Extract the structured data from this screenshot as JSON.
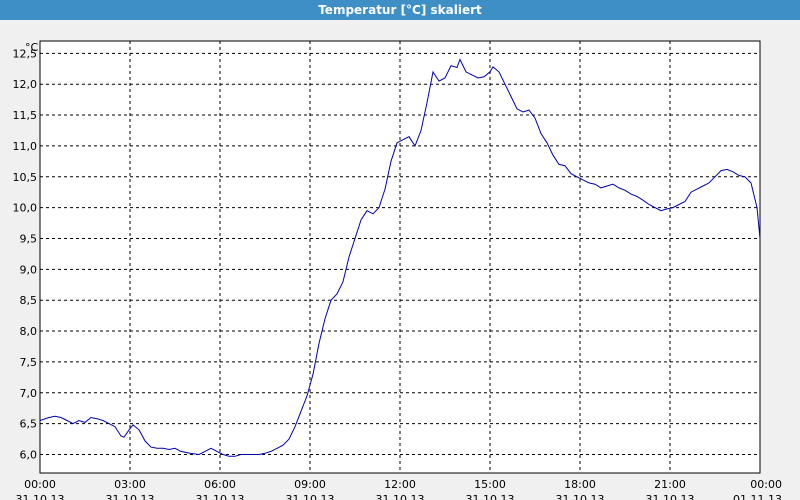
{
  "window": {
    "title": "Temperatur [°C] skaliert"
  },
  "chart_data": {
    "type": "line",
    "title": "Temperatur [°C] skaliert",
    "y_unit": "°C",
    "ylim": [
      5.7,
      12.7
    ],
    "yticks": [
      "12,5",
      "12,0",
      "11,5",
      "11,0",
      "10,5",
      "10,0",
      "9,5",
      "9,0",
      "8,5",
      "8,0",
      "7,5",
      "7,0",
      "6,5",
      "6,0"
    ],
    "ytick_values": [
      12.5,
      12.0,
      11.5,
      11.0,
      10.5,
      10.0,
      9.5,
      9.0,
      8.5,
      8.0,
      7.5,
      7.0,
      6.5,
      6.0
    ],
    "xlim": [
      0,
      24
    ],
    "xticks": [
      {
        "time": "00:00",
        "date": "31.10.13"
      },
      {
        "time": "03:00",
        "date": "31.10.13"
      },
      {
        "time": "06:00",
        "date": "31.10.13"
      },
      {
        "time": "09:00",
        "date": "31.10.13"
      },
      {
        "time": "12:00",
        "date": "31.10.13"
      },
      {
        "time": "15:00",
        "date": "31.10.13"
      },
      {
        "time": "18:00",
        "date": "31.10.13"
      },
      {
        "time": "21:00",
        "date": "31.10.13"
      },
      {
        "time": "00:00",
        "date": "01.11.13"
      }
    ],
    "grid": true,
    "line_color": "#0000aa",
    "series": [
      {
        "x": [
          0,
          0.3,
          0.5,
          0.7,
          0.9,
          1.1,
          1.3,
          1.5,
          1.7,
          1.9,
          2.1,
          2.3,
          2.5,
          2.7,
          2.8,
          3.0,
          3.1,
          3.3,
          3.5,
          3.7,
          3.9,
          4.1,
          4.3,
          4.5,
          4.7,
          5.0,
          5.3,
          5.5,
          5.7,
          5.9,
          6.1,
          6.3,
          6.5,
          6.7,
          6.9,
          7.1,
          7.3,
          7.5,
          7.7,
          7.9,
          8.1,
          8.3,
          8.5,
          8.7,
          8.9,
          9.1,
          9.3,
          9.5,
          9.7,
          9.9,
          10.1,
          10.3,
          10.5,
          10.7,
          10.9,
          11.1,
          11.3,
          11.5,
          11.7,
          11.9,
          12.1,
          12.3,
          12.5,
          12.7,
          12.9,
          13.1,
          13.3,
          13.5,
          13.7,
          13.9,
          14.0,
          14.2,
          14.4,
          14.6,
          14.8,
          15.0,
          15.1,
          15.3,
          15.5,
          15.7,
          15.9,
          16.1,
          16.3,
          16.5,
          16.7,
          16.9,
          17.1,
          17.3,
          17.5,
          17.7,
          17.9,
          18.1,
          18.3,
          18.5,
          18.7,
          18.9,
          19.1,
          19.3,
          19.5,
          19.7,
          19.9,
          20.1,
          20.3,
          20.5,
          20.7,
          20.9,
          21.1,
          21.3,
          21.5,
          21.7,
          21.9,
          22.1,
          22.3,
          22.5,
          22.7,
          22.9,
          23.1,
          23.3,
          23.5,
          23.7,
          23.9
        ],
        "y": [
          6.55,
          6.6,
          6.62,
          6.6,
          6.55,
          6.5,
          6.55,
          6.52,
          6.6,
          6.58,
          6.55,
          6.5,
          6.45,
          6.3,
          6.28,
          6.42,
          6.48,
          6.4,
          6.22,
          6.12,
          6.1,
          6.1,
          6.08,
          6.1,
          6.05,
          6.02,
          6.0,
          6.05,
          6.1,
          6.05,
          6.0,
          5.97,
          5.97,
          6.0,
          6.0,
          6.0,
          6.0,
          6.02,
          6.05,
          6.1,
          6.15,
          6.25,
          6.45,
          6.7,
          6.95,
          7.3,
          7.8,
          8.2,
          8.5,
          8.6,
          8.8,
          9.2,
          9.5,
          9.8,
          9.95,
          9.9,
          10.0,
          10.3,
          10.75,
          11.05,
          11.1,
          11.15,
          11.0,
          11.25,
          11.7,
          12.2,
          12.05,
          12.1,
          12.3,
          12.27,
          12.4,
          12.2,
          12.15,
          12.1,
          12.12,
          12.2,
          12.28,
          12.2,
          12.0,
          11.8,
          11.6,
          11.55,
          11.58,
          11.45,
          11.2,
          11.05,
          10.85,
          10.7,
          10.68,
          10.55,
          10.5,
          10.45,
          10.4,
          10.38,
          10.32,
          10.35,
          10.38,
          10.32,
          10.28,
          10.22,
          10.18,
          10.12,
          10.05,
          10.0,
          9.95,
          9.98,
          10.0,
          10.05,
          10.1,
          10.25,
          10.3,
          10.35,
          10.4,
          10.5,
          10.6,
          10.62,
          10.58,
          10.52,
          10.5,
          10.4,
          10.0
        ]
      },
      {
        "x": [
          24.0
        ],
        "y": [
          9.5
        ]
      }
    ]
  }
}
